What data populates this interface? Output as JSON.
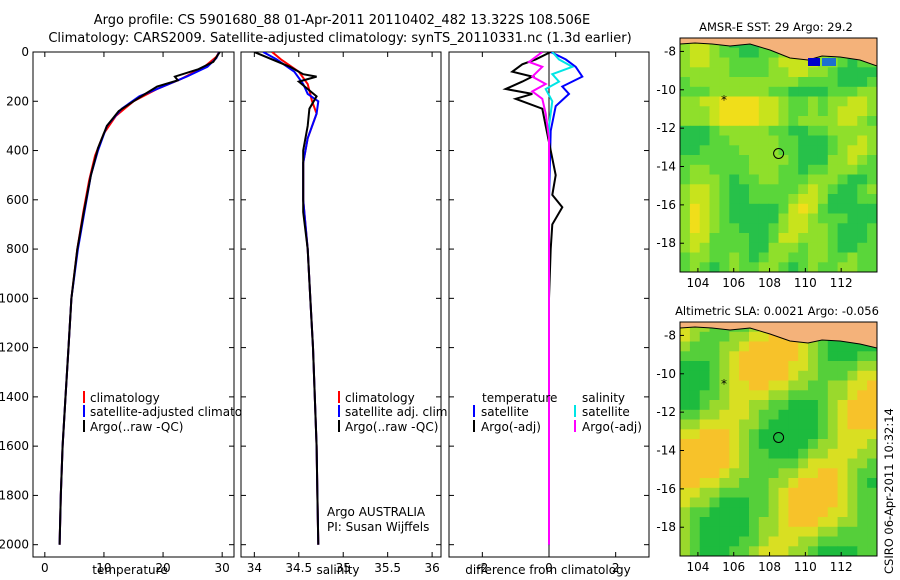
{
  "header": {
    "title_line1": "Argo profile: CS 5901680_88 01-Apr-2011 20110402_482 13.322S 108.506E",
    "title_line2": "Climatology: CARS2009. Satellite-adjusted climatology: synTS_20110331.nc (1.3d earlier)"
  },
  "side_label": "CSIRO 06-Apr-2011 10:32:14",
  "colors": {
    "climatology": "#ff0000",
    "satellite": "#0000ff",
    "argo": "#000000",
    "salinity_satellite": "#00e5e5",
    "salinity_argo": "#ff00ff"
  },
  "chart_data": [
    {
      "type": "line",
      "xlabel": "temperature",
      "xlim": [
        -2,
        32
      ],
      "ylim": [
        2050,
        0
      ],
      "xticks": [
        0,
        10,
        20,
        30
      ],
      "yticks": [
        0,
        200,
        400,
        600,
        800,
        1000,
        1200,
        1400,
        1600,
        1800,
        2000
      ],
      "legend": [
        "climatology",
        "satellite-adjusted climatology",
        "Argo(..raw -QC)"
      ],
      "series": [
        {
          "name": "climatology",
          "color": "#ff0000",
          "points": [
            [
              29.5,
              0
            ],
            [
              29,
              20
            ],
            [
              27,
              60
            ],
            [
              23,
              110
            ],
            [
              19,
              150
            ],
            [
              15,
              200
            ],
            [
              12,
              260
            ],
            [
              10,
              330
            ],
            [
              8.5,
              420
            ],
            [
              7.5,
              520
            ],
            [
              6.5,
              650
            ],
            [
              5.5,
              800
            ],
            [
              4.5,
              1000
            ],
            [
              4,
              1200
            ],
            [
              3.5,
              1400
            ],
            [
              3,
              1600
            ],
            [
              2.7,
              1800
            ],
            [
              2.5,
              2000
            ]
          ]
        },
        {
          "name": "satellite-adjusted climatology",
          "color": "#0000ff",
          "points": [
            [
              29.5,
              0
            ],
            [
              29,
              25
            ],
            [
              27.5,
              60
            ],
            [
              24,
              100
            ],
            [
              20,
              140
            ],
            [
              16,
              180
            ],
            [
              13,
              230
            ],
            [
              10.5,
              300
            ],
            [
              9,
              400
            ],
            [
              7.8,
              500
            ],
            [
              6.7,
              650
            ],
            [
              5.6,
              800
            ],
            [
              4.5,
              1000
            ],
            [
              4,
              1200
            ],
            [
              3.5,
              1400
            ],
            [
              3,
              1600
            ],
            [
              2.7,
              1800
            ],
            [
              2.5,
              2000
            ]
          ]
        },
        {
          "name": "Argo(..raw -QC)",
          "color": "#000000",
          "points": [
            [
              29.6,
              0
            ],
            [
              28.5,
              40
            ],
            [
              26,
              70
            ],
            [
              22,
              100
            ],
            [
              22.5,
              115
            ],
            [
              19,
              140
            ],
            [
              17,
              170
            ],
            [
              15,
              200
            ],
            [
              12.5,
              240
            ],
            [
              10.5,
              300
            ],
            [
              9,
              390
            ],
            [
              7.8,
              500
            ],
            [
              6.6,
              650
            ],
            [
              5.5,
              800
            ],
            [
              4.5,
              1000
            ],
            [
              4,
              1200
            ],
            [
              3.5,
              1400
            ],
            [
              3,
              1600
            ],
            [
              2.7,
              1800
            ],
            [
              2.5,
              2000
            ]
          ]
        }
      ]
    },
    {
      "type": "line",
      "xlabel": "salinity",
      "xlim": [
        33.85,
        36.1
      ],
      "ylim": [
        2050,
        0
      ],
      "xticks": [
        34,
        34.5,
        35,
        35.5,
        36
      ],
      "xticklabels": [
        "34",
        "34.5",
        "35",
        "35.5",
        "36"
      ],
      "legend": [
        "climatology",
        "satellite adj. clim.",
        "Argo(..raw -QC)"
      ],
      "annotation": [
        "Argo AUSTRALIA",
        "PI: Susan Wijffels"
      ],
      "series": [
        {
          "name": "climatology",
          "color": "#ff0000",
          "points": [
            [
              34.2,
              0
            ],
            [
              34.3,
              30
            ],
            [
              34.5,
              80
            ],
            [
              34.6,
              130
            ],
            [
              34.65,
              200
            ],
            [
              34.7,
              250
            ],
            [
              34.6,
              350
            ],
            [
              34.55,
              450
            ],
            [
              34.55,
              600
            ],
            [
              34.6,
              800
            ],
            [
              34.63,
              1000
            ],
            [
              34.66,
              1200
            ],
            [
              34.68,
              1400
            ],
            [
              34.7,
              1600
            ],
            [
              34.71,
              1800
            ],
            [
              34.72,
              2000
            ]
          ]
        },
        {
          "name": "satellite adj. clim.",
          "color": "#0000ff",
          "points": [
            [
              34.1,
              0
            ],
            [
              34.25,
              30
            ],
            [
              34.45,
              80
            ],
            [
              34.55,
              130
            ],
            [
              34.6,
              170
            ],
            [
              34.72,
              200
            ],
            [
              34.7,
              250
            ],
            [
              34.6,
              350
            ],
            [
              34.55,
              450
            ],
            [
              34.55,
              600
            ],
            [
              34.6,
              800
            ],
            [
              34.63,
              1000
            ],
            [
              34.66,
              1200
            ],
            [
              34.68,
              1400
            ],
            [
              34.7,
              1600
            ],
            [
              34.71,
              1800
            ],
            [
              34.72,
              2000
            ]
          ]
        },
        {
          "name": "Argo(..raw -QC)",
          "color": "#000000",
          "points": [
            [
              34.0,
              0
            ],
            [
              34.2,
              30
            ],
            [
              34.4,
              60
            ],
            [
              34.55,
              90
            ],
            [
              34.7,
              100
            ],
            [
              34.5,
              120
            ],
            [
              34.6,
              150
            ],
            [
              34.7,
              180
            ],
            [
              34.62,
              230
            ],
            [
              34.6,
              300
            ],
            [
              34.55,
              400
            ],
            [
              34.55,
              500
            ],
            [
              34.55,
              650
            ],
            [
              34.6,
              800
            ],
            [
              34.63,
              1000
            ],
            [
              34.66,
              1200
            ],
            [
              34.68,
              1400
            ],
            [
              34.7,
              1600
            ],
            [
              34.71,
              1800
            ],
            [
              34.72,
              2000
            ]
          ]
        }
      ]
    },
    {
      "type": "line",
      "xlabel": "difference from climatology",
      "xlim": [
        -3,
        3
      ],
      "ylim": [
        2050,
        0
      ],
      "xticks": [
        -2,
        0,
        2
      ],
      "legend_titles": [
        "temperature",
        "salinity"
      ],
      "legend": [
        "satellite",
        "Argo(-adj)",
        "satellite",
        "Argo(-adj)"
      ],
      "series": [
        {
          "name": "temperature satellite",
          "color": "#0000ff",
          "points": [
            [
              0.05,
              0
            ],
            [
              0.5,
              30
            ],
            [
              0.8,
              60
            ],
            [
              1.0,
              100
            ],
            [
              0.4,
              140
            ],
            [
              0.6,
              170
            ],
            [
              0.2,
              220
            ],
            [
              0.05,
              320
            ],
            [
              0,
              600
            ],
            [
              0,
              1000
            ],
            [
              0,
              1500
            ],
            [
              0,
              2000
            ]
          ]
        },
        {
          "name": "temperature Argo(-adj)",
          "color": "#000000",
          "points": [
            [
              0.05,
              0
            ],
            [
              -0.4,
              30
            ],
            [
              -0.8,
              50
            ],
            [
              -1.1,
              80
            ],
            [
              -0.5,
              100
            ],
            [
              -0.8,
              120
            ],
            [
              -1.3,
              150
            ],
            [
              -0.5,
              170
            ],
            [
              -1.0,
              190
            ],
            [
              -0.2,
              230
            ],
            [
              -0.1,
              300
            ],
            [
              0.05,
              400
            ],
            [
              0.2,
              500
            ],
            [
              0.1,
              580
            ],
            [
              0.4,
              630
            ],
            [
              0.1,
              700
            ],
            [
              0.05,
              800
            ],
            [
              0,
              1000
            ],
            [
              0,
              1500
            ],
            [
              0,
              2000
            ]
          ]
        },
        {
          "name": "salinity satellite",
          "color": "#00e5e5",
          "points": [
            [
              0.1,
              0
            ],
            [
              0.3,
              30
            ],
            [
              0.7,
              60
            ],
            [
              0.1,
              90
            ],
            [
              0.3,
              120
            ],
            [
              -0.1,
              150
            ],
            [
              0.1,
              200
            ],
            [
              0,
              300
            ],
            [
              0,
              600
            ],
            [
              0,
              1000
            ],
            [
              0,
              1500
            ],
            [
              0,
              2000
            ]
          ]
        },
        {
          "name": "salinity Argo(-adj)",
          "color": "#ff00ff",
          "points": [
            [
              -0.2,
              0
            ],
            [
              -0.6,
              40
            ],
            [
              -0.2,
              60
            ],
            [
              -0.5,
              100
            ],
            [
              -0.1,
              130
            ],
            [
              -0.5,
              160
            ],
            [
              -0.2,
              190
            ],
            [
              -0.1,
              250
            ],
            [
              0,
              350
            ],
            [
              0,
              600
            ],
            [
              0,
              1000
            ],
            [
              0,
              1500
            ],
            [
              0,
              2000
            ]
          ]
        }
      ]
    },
    {
      "type": "heatmap",
      "title": "AMSR-E SST: 29 Argo: 29.2",
      "xlim": [
        103,
        114
      ],
      "ylim": [
        -19.5,
        -7.3
      ],
      "xticks": [
        104,
        106,
        108,
        110,
        112
      ],
      "yticks": [
        -8,
        -10,
        -12,
        -14,
        -16,
        -18
      ],
      "float_position": [
        108.506,
        -13.322
      ],
      "palette": [
        "#27c14a",
        "#5ad63a",
        "#8fdf2b",
        "#c8e31c",
        "#f0de1a"
      ]
    },
    {
      "type": "heatmap",
      "title": "Altimetric SLA: 0.0021 Argo: -0.056",
      "xlim": [
        103,
        114
      ],
      "ylim": [
        -19.5,
        -7.3
      ],
      "xticks": [
        104,
        106,
        108,
        110,
        112
      ],
      "yticks": [
        -8,
        -10,
        -12,
        -14,
        -16,
        -18
      ],
      "float_position": [
        108.506,
        -13.322
      ],
      "palette": [
        "#1dbb3e",
        "#55cf3a",
        "#9ad92c",
        "#d9df22",
        "#f7c22a"
      ]
    }
  ]
}
